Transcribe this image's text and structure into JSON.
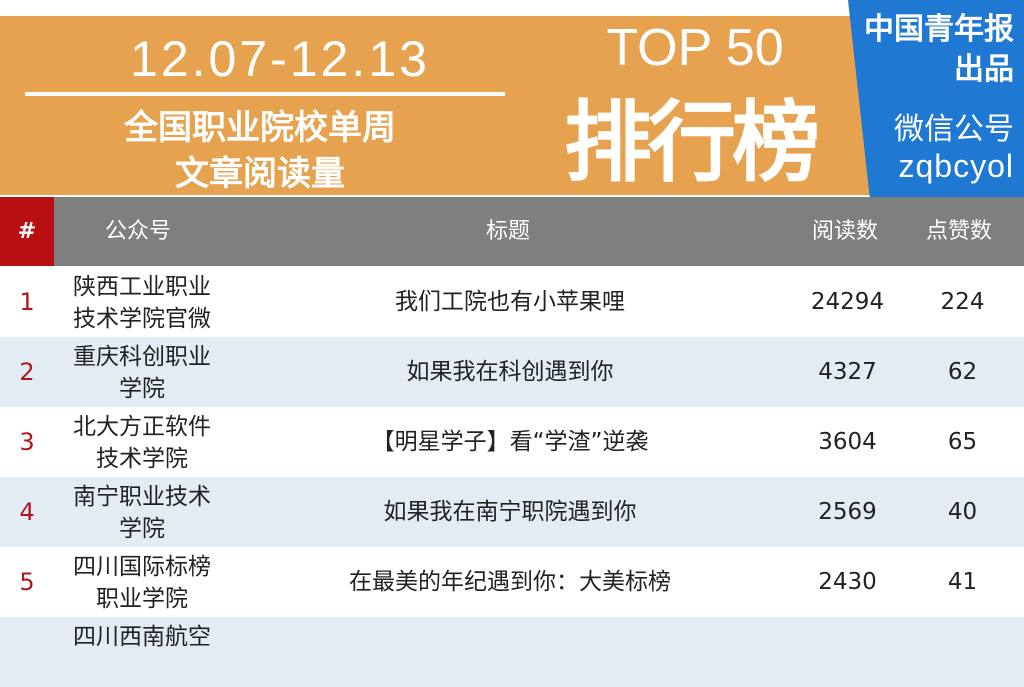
{
  "banner": {
    "date_range": "12.07-12.13",
    "subtitle_line1": "全国职业院校单周",
    "subtitle_line2": "文章阅读量",
    "top": "TOP 50",
    "rank_title": "排行榜",
    "accent_color": "#E6A24E"
  },
  "publisher": {
    "line1": "中国青年报",
    "line2": "出品",
    "line3": "微信公号",
    "account_id": "zqbcyol",
    "color": "#1F78D1"
  },
  "table": {
    "headers": {
      "rank": "#",
      "account": "公众号",
      "title": "标题",
      "reads": "阅读数",
      "likes": "点赞数"
    },
    "rows": [
      {
        "rank": "1",
        "account": "陕西工业职业技术学院官微",
        "title": "我们工院也有小苹果哩",
        "reads": "24294",
        "likes": "224"
      },
      {
        "rank": "2",
        "account": "重庆科创职业学院",
        "title": "如果我在科创遇到你",
        "reads": "4327",
        "likes": "62"
      },
      {
        "rank": "3",
        "account": "北大方正软件技术学院",
        "title": "【明星学子】看“学渣”逆袭",
        "reads": "3604",
        "likes": "65"
      },
      {
        "rank": "4",
        "account": "南宁职业技术学院",
        "title": "如果我在南宁职院遇到你",
        "reads": "2569",
        "likes": "40"
      },
      {
        "rank": "5",
        "account": "四川国际标榜职业学院",
        "title": "在最美的年纪遇到你：大美标榜",
        "reads": "2430",
        "likes": "41"
      },
      {
        "rank": "",
        "account": "四川西南航空",
        "title": "",
        "reads": "",
        "likes": ""
      }
    ]
  }
}
